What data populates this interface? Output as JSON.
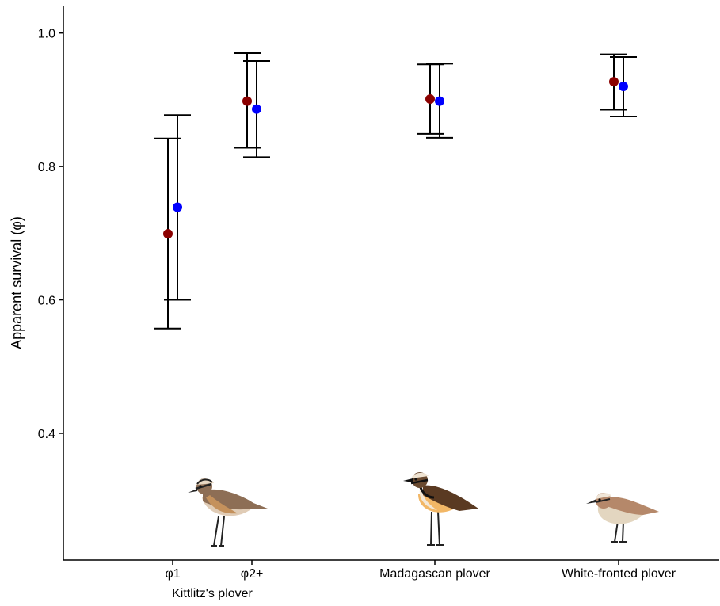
{
  "chart_data": {
    "type": "scatter",
    "title": "",
    "ylabel": "Apparent survival (φ)",
    "xlabel": "",
    "ylim": [
      0.21,
      1.04
    ],
    "yticks": [
      0.4,
      0.6,
      0.8,
      1.0
    ],
    "ytick_labels": [
      "0.4",
      "0.6",
      "0.8",
      "1.0"
    ],
    "grid": false,
    "legend": "none",
    "categories": [
      "φ1",
      "φ2+",
      "Madagascan plover",
      "White-fronted plover"
    ],
    "group_label": "Kittlitz's plover",
    "series": [
      {
        "color": "#8B0000",
        "values": [
          0.699,
          0.898,
          0.901,
          0.927
        ],
        "lower": [
          0.557,
          0.828,
          0.849,
          0.885
        ],
        "upper": [
          0.842,
          0.97,
          0.953,
          0.968
        ]
      },
      {
        "color": "#0000FF",
        "values": [
          0.739,
          0.886,
          0.898,
          0.92
        ],
        "lower": [
          0.6,
          0.814,
          0.843,
          0.875
        ],
        "upper": [
          0.877,
          0.958,
          0.954,
          0.964
        ]
      }
    ],
    "bird_icons": [
      "kittlitzs-plover-icon",
      "madagascan-plover-icon",
      "white-fronted-plover-icon"
    ]
  }
}
